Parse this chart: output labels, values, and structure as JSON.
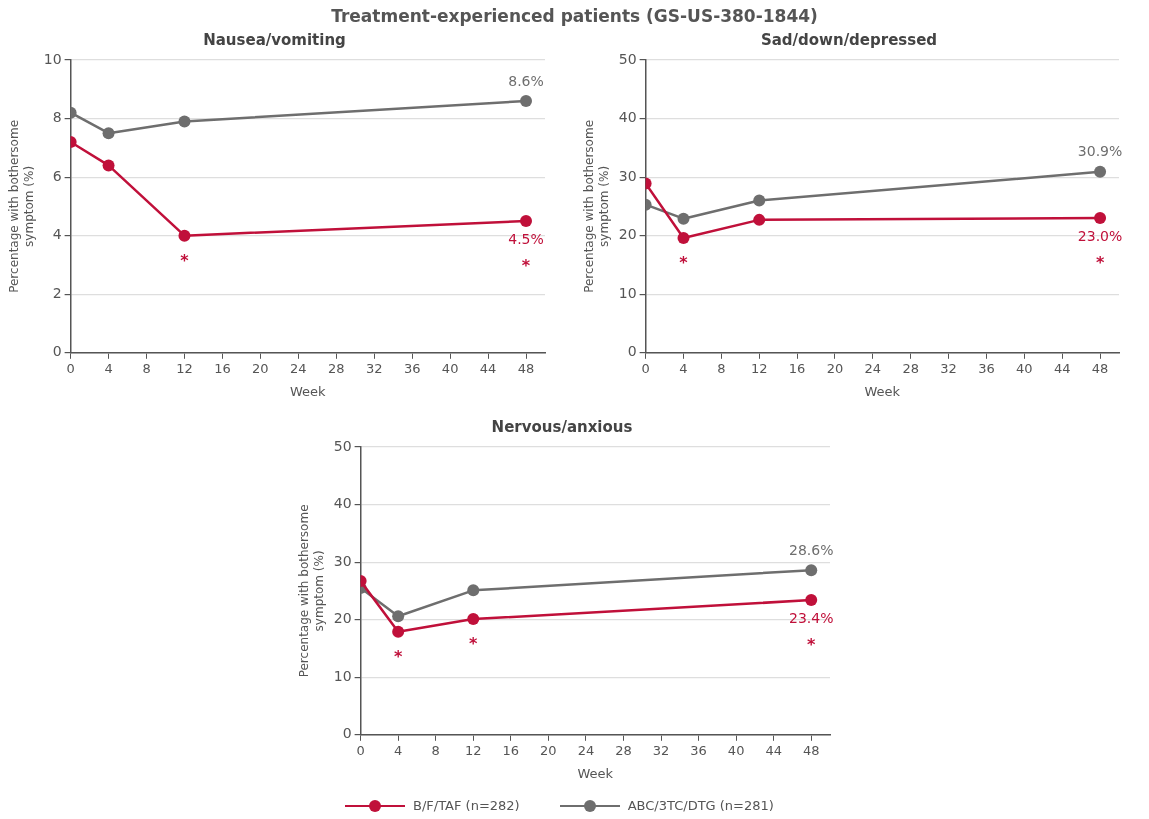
{
  "chart_data": [
    {
      "type": "line",
      "title": "Treatment-experienced patients (GS-US-380-1844)",
      "subtitle": "Nausea/vomiting",
      "xlabel": "Week",
      "ylabel": "Percentage with bothersome symptom (%)",
      "x": [
        0,
        4,
        12,
        48
      ],
      "xlim": [
        0,
        50
      ],
      "xticks": [
        0,
        4,
        8,
        12,
        16,
        20,
        24,
        28,
        32,
        36,
        40,
        44,
        48
      ],
      "ylim": [
        0,
        10
      ],
      "yticks": [
        0,
        2,
        4,
        6,
        8,
        10
      ],
      "grid": "y",
      "marker": "circle",
      "legend": "bottom",
      "series": [
        {
          "name": "B/F/TAF (n=282)",
          "color": "#c0103a",
          "values": [
            7.2,
            6.4,
            4.0,
            4.5
          ],
          "value_labels": [
            null,
            null,
            null,
            "4.5%"
          ]
        },
        {
          "name": "ABC/3TC/DTG (n=281)",
          "color": "#6e6e6e",
          "values": [
            8.2,
            7.5,
            7.9,
            8.6
          ],
          "value_labels": [
            null,
            null,
            null,
            "8.6%"
          ]
        }
      ],
      "annotations": [
        {
          "text": "*",
          "x": 12,
          "y": 4.0
        },
        {
          "text": "*",
          "x": 48,
          "y": 4.5
        }
      ]
    },
    {
      "type": "line",
      "subtitle": "Sad/down/depressed",
      "xlabel": "Week",
      "ylabel": "Percentage with bothersome symptom (%)",
      "x": [
        0,
        4,
        12,
        48
      ],
      "xlim": [
        0,
        50
      ],
      "xticks": [
        0,
        4,
        8,
        12,
        16,
        20,
        24,
        28,
        32,
        36,
        40,
        44,
        48
      ],
      "ylim": [
        0,
        50
      ],
      "yticks": [
        0,
        10,
        20,
        30,
        40,
        50
      ],
      "grid": "y",
      "marker": "circle",
      "legend": false,
      "series": [
        {
          "color": "#c0103a",
          "values": [
            28.9,
            19.6,
            22.7,
            23.0
          ],
          "value_labels": [
            null,
            null,
            null,
            "23.0%"
          ]
        },
        {
          "color": "#6e6e6e",
          "values": [
            25.3,
            22.9,
            26.0,
            30.9
          ],
          "value_labels": [
            null,
            null,
            null,
            "30.9%"
          ]
        }
      ],
      "annotations": [
        {
          "text": "*",
          "x": 4,
          "y": 19.6
        },
        {
          "text": "*",
          "x": 48,
          "y": 23.0
        }
      ]
    },
    {
      "type": "line",
      "subtitle": "Nervous/anxious",
      "xlabel": "Week",
      "ylabel": "Percentage with bothersome symptom (%)",
      "x": [
        0,
        4,
        12,
        48
      ],
      "xlim": [
        0,
        50
      ],
      "xticks": [
        0,
        4,
        8,
        12,
        16,
        20,
        24,
        28,
        32,
        36,
        40,
        44,
        48
      ],
      "ylim": [
        0,
        50
      ],
      "yticks": [
        0,
        10,
        20,
        30,
        40,
        50
      ],
      "grid": "y",
      "marker": "circle",
      "series": [
        {
          "color": "#c0103a",
          "values": [
            26.7,
            17.9,
            20.1,
            23.4
          ],
          "value_labels": [
            null,
            null,
            null,
            "23.4%"
          ]
        },
        {
          "color": "#6e6e6e",
          "values": [
            25.5,
            20.6,
            25.1,
            28.6
          ],
          "value_labels": [
            null,
            null,
            null,
            "28.6%"
          ]
        }
      ],
      "annotations": [
        {
          "text": "*",
          "x": 4,
          "y": 17.9
        },
        {
          "text": "*",
          "x": 12,
          "y": 20.1
        },
        {
          "text": "*",
          "x": 48,
          "y": 23.4
        }
      ]
    }
  ]
}
